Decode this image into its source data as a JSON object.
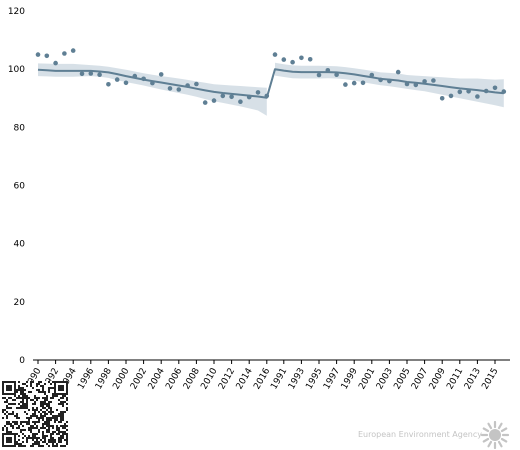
{
  "chart_data": {
    "type": "scatter",
    "title": "",
    "xlabel": "",
    "ylabel": "",
    "ylim": [
      0,
      120
    ],
    "yticks": [
      0,
      20,
      40,
      60,
      80,
      100,
      120
    ],
    "grid": false,
    "panels": [
      {
        "x_start_year": 1990,
        "xtick_labels": [
          "1990",
          "1992",
          "1994",
          "1996",
          "1998",
          "2000",
          "2002",
          "2004",
          "2006",
          "2008",
          "2010",
          "2012",
          "2014",
          "2016"
        ],
        "points": [
          105.0,
          104.6,
          102.1,
          105.4,
          106.4,
          98.4,
          98.5,
          98.1,
          94.8,
          96.4,
          95.3,
          97.6,
          96.7,
          95.2,
          98.2,
          93.4,
          93.0,
          94.4,
          94.9,
          88.5,
          89.2,
          90.8,
          90.5,
          88.8,
          90.4,
          92.0,
          90.8
        ],
        "trend": [
          99.8,
          99.6,
          99.4,
          99.4,
          99.4,
          99.4,
          99.4,
          99.2,
          98.9,
          98.3,
          97.6,
          97.0,
          96.4,
          95.9,
          95.4,
          94.9,
          94.4,
          93.9,
          93.3,
          92.7,
          92.2,
          91.8,
          91.5,
          91.2,
          90.9,
          90.6,
          90.2
        ],
        "lower": [
          97.6,
          97.5,
          97.4,
          97.4,
          97.4,
          97.5,
          97.6,
          97.4,
          97.0,
          96.2,
          95.6,
          95.0,
          94.4,
          93.7,
          93.0,
          92.4,
          91.8,
          91.2,
          90.5,
          89.7,
          89.0,
          88.4,
          87.8,
          87.2,
          86.5,
          85.8,
          84.0
        ],
        "upper": [
          102.0,
          101.9,
          101.8,
          101.8,
          101.8,
          101.6,
          101.4,
          101.2,
          100.8,
          100.3,
          99.8,
          99.2,
          98.6,
          98.1,
          97.6,
          97.2,
          96.8,
          96.3,
          95.8,
          95.3,
          94.8,
          94.6,
          94.4,
          94.2,
          94.0,
          93.8,
          93.6
        ]
      },
      {
        "x_start_year": 1990,
        "xtick_labels": [
          "1991",
          "1993",
          "1995",
          "1997",
          "1999",
          "2001",
          "2003",
          "2005",
          "2007",
          "2009",
          "2011",
          "2013",
          "2015"
        ],
        "points": [
          105.0,
          103.3,
          102.4,
          103.9,
          103.4,
          98.0,
          99.6,
          98.1,
          94.7,
          95.2,
          95.3,
          98.0,
          96.3,
          95.9,
          99.0,
          94.9,
          94.6,
          95.8,
          96.1,
          90.0,
          90.8,
          92.2,
          92.4,
          90.6,
          92.5,
          93.6,
          92.3
        ],
        "trend": [
          100.0,
          99.5,
          99.1,
          99.0,
          99.0,
          99.0,
          99.0,
          98.9,
          98.6,
          98.2,
          97.7,
          97.2,
          96.7,
          96.4,
          96.1,
          95.6,
          95.3,
          95.0,
          94.6,
          94.2,
          93.8,
          93.4,
          93.1,
          92.8,
          92.4,
          92.0,
          91.7
        ],
        "lower": [
          97.8,
          97.3,
          96.9,
          96.8,
          96.8,
          96.8,
          96.9,
          96.8,
          96.5,
          96.1,
          95.5,
          95.0,
          94.5,
          94.1,
          93.7,
          93.2,
          92.8,
          92.4,
          91.8,
          91.2,
          90.6,
          90.0,
          89.4,
          88.8,
          88.2,
          87.6,
          86.9
        ],
        "upper": [
          102.2,
          101.7,
          101.3,
          101.2,
          101.2,
          101.2,
          101.1,
          101.0,
          100.7,
          100.3,
          99.9,
          99.4,
          98.9,
          98.7,
          98.5,
          98.0,
          97.8,
          97.6,
          97.4,
          97.2,
          97.0,
          96.8,
          96.8,
          96.8,
          96.6,
          96.4,
          96.5
        ]
      }
    ]
  },
  "colors": {
    "points": "#5f7f94",
    "trend": "#5f7f94",
    "band": "#c9d6df",
    "axis": "#000000",
    "logo": "#c4c4c4"
  },
  "footer": {
    "logo_text": "European Environment Agency"
  },
  "icons": [
    "qr-code-icon",
    "eea-sun-logo-icon"
  ]
}
